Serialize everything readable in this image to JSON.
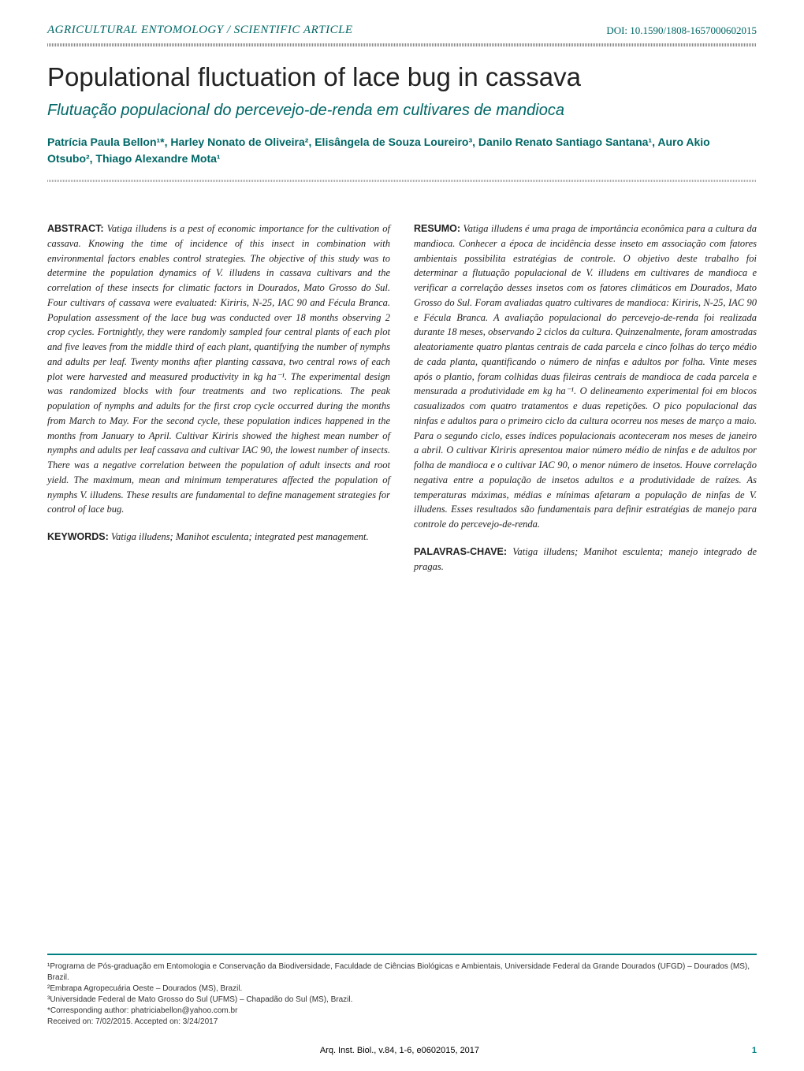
{
  "header": {
    "section_label": "AGRICULTURAL ENTOMOLOGY / SCIENTIFIC ARTICLE",
    "doi": "DOI: 10.1590/1808-1657000602015"
  },
  "title": "Populational fluctuation of lace bug in cassava",
  "subtitle": "Flutuação populacional do percevejo-de-renda em cultivares de mandioca",
  "authors": "Patrícia Paula Bellon¹*, Harley Nonato de Oliveira², Elisângela de Souza Loureiro³, Danilo Renato Santiago Santana¹, Auro Akio Otsubo², Thiago Alexandre Mota¹",
  "abstract": {
    "heading": "ABSTRACT:",
    "body": "Vatiga illudens is a pest of economic importance for the cultivation of cassava. Knowing the time of incidence of this insect in combination with environmental factors enables control strategies. The objective of this study was to determine the population dynamics of V. illudens in cassava cultivars and the correlation of these insects for climatic factors in Dourados, Mato Grosso do Sul. Four cultivars of cassava were evaluated: Kiriris, N-25, IAC 90 and Fécula Branca. Population assessment of the lace bug was conducted over 18 months observing 2 crop cycles. Fortnightly, they were randomly sampled four central plants of each plot and five leaves from the middle third of each plant, quantifying the number of nymphs and adults per leaf. Twenty months after planting cassava, two central rows of each plot were harvested and measured productivity in kg ha⁻¹. The experimental design was randomized blocks with four treatments and two replications. The peak population of nymphs and adults for the first crop cycle occurred during the months from March to May. For the second cycle, these population indices happened in the months from January to April. Cultivar Kiriris showed the highest mean number of nymphs and adults per leaf cassava and cultivar IAC 90, the lowest number of insects. There was a negative correlation between the population of adult insects and root yield. The maximum, mean and minimum temperatures affected the population of nymphs V. illudens. These results are fundamental to define management strategies for control of lace bug."
  },
  "keywords": {
    "label": "KEYWORDS:",
    "text": "Vatiga illudens; Manihot esculenta; integrated pest management."
  },
  "resumo": {
    "heading": "RESUMO:",
    "body": "Vatiga illudens é uma praga de importância econômica para a cultura da mandioca. Conhecer a época de incidência desse inseto em associação com fatores ambientais possibilita estratégias de controle. O objetivo deste trabalho foi determinar a flutuação populacional de V. illudens em cultivares de mandioca e verificar a correlação desses insetos com os fatores climáticos em Dourados, Mato Grosso do Sul. Foram avaliadas quatro cultivares de mandioca: Kiriris, N-25, IAC 90 e Fécula Branca. A avaliação populacional do percevejo-de-renda foi realizada durante 18 meses, observando 2 ciclos da cultura. Quinzenalmente, foram amostradas aleatoriamente quatro plantas centrais de cada parcela e cinco folhas do terço médio de cada planta, quantificando o número de ninfas e adultos por folha. Vinte meses após o plantio, foram colhidas duas fileiras centrais de mandioca de cada parcela e mensurada a produtividade em kg ha⁻¹. O delineamento experimental foi em blocos casualizados com quatro tratamentos e duas repetições. O pico populacional das ninfas e adultos para o primeiro ciclo da cultura ocorreu nos meses de março a maio. Para o segundo ciclo, esses índices populacionais aconteceram nos meses de janeiro a abril. O cultivar Kiriris apresentou maior número médio de ninfas e de adultos por folha de mandioca e o cultivar IAC 90, o menor número de insetos. Houve correlação negativa entre a população de insetos adultos e a produtividade de raízes. As temperaturas máximas, médias e mínimas afetaram a população de ninfas de V. illudens. Esses resultados são fundamentais para definir estratégias de manejo para controle do percevejo-de-renda."
  },
  "palavras": {
    "label": "PALAVRAS-CHAVE:",
    "text": "Vatiga illudens; Manihot esculenta; manejo integrado de pragas."
  },
  "affiliations": {
    "a1": "¹Programa de Pós-graduação em Entomologia e Conservação da Biodiversidade, Faculdade de Ciências Biológicas e Ambientais, Universidade Federal da Grande Dourados (UFGD) – Dourados (MS), Brazil.",
    "a2": "²Embrapa Agropecuária Oeste – Dourados (MS), Brazil.",
    "a3": "³Universidade Federal de Mato Grosso do Sul (UFMS) – Chapadão do Sul (MS), Brazil.",
    "corresponding": "*Corresponding author: phatriciabellon@yahoo.com.br",
    "received": "Received on: 7/02/2015. Accepted on: 3/24/2017"
  },
  "page_footer": {
    "citation": "Arq. Inst. Biol., v.84, 1-6, e0602015, 2017",
    "page": "1"
  },
  "colors": {
    "teal": "#006666",
    "teal_border": "#008080",
    "text": "#222222"
  },
  "typography": {
    "title_fontsize": 33,
    "subtitle_fontsize": 20,
    "body_fontsize": 12.5,
    "footer_fontsize": 10
  }
}
